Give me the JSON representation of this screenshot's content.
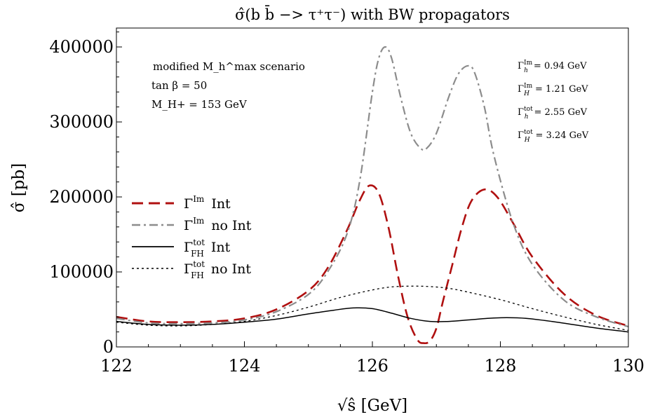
{
  "chart_data": {
    "type": "line",
    "title": "σ̂(b b̄ −> τ⁺τ⁻) with BW propagators",
    "xlabel": "√ŝ  [GeV]",
    "ylabel": "σ̂  [pb]",
    "xlim": [
      122,
      130
    ],
    "ylim": [
      0,
      420000
    ],
    "xticks": [
      122,
      124,
      126,
      128,
      130
    ],
    "yticks": [
      0,
      100000,
      200000,
      300000,
      400000
    ],
    "grid": false,
    "legend_position": "left",
    "annotations": {
      "scenario": "modified M_h^max scenario",
      "tanbeta": "tan β = 50",
      "mass": "M_H+ = 153 GeV"
    },
    "widths": [
      {
        "sym": "Γ",
        "sup": "Im",
        "sub": "h",
        "value": "= 0.94 GeV"
      },
      {
        "sym": "Γ",
        "sup": "Im",
        "sub": "H",
        "value": "= 1.21 GeV"
      },
      {
        "sym": "Γ",
        "sup": "tot",
        "sub": "h",
        "value": "= 2.55 GeV"
      },
      {
        "sym": "Γ",
        "sup": "tot",
        "sub": "H",
        "value": "= 3.24 GeV"
      }
    ],
    "series": [
      {
        "name": "Γ^Im Int",
        "legend": {
          "sym": "Γ",
          "sup": "Im",
          "sub": "",
          "text": "Int"
        },
        "color": "#b01010",
        "style": "dashed",
        "x": [
          122,
          122.5,
          123,
          123.5,
          124,
          124.5,
          125,
          125.3,
          125.6,
          125.8,
          125.95,
          126.1,
          126.25,
          126.4,
          126.55,
          126.7,
          126.8,
          126.9,
          127,
          127.1,
          127.25,
          127.4,
          127.55,
          127.75,
          127.95,
          128.2,
          128.5,
          129,
          129.5,
          130
        ],
        "y": [
          40000,
          34000,
          33000,
          34000,
          38000,
          50000,
          75000,
          105000,
          155000,
          195000,
          215000,
          205000,
          160000,
          95000,
          40000,
          10000,
          5000,
          8000,
          25000,
          60000,
          110000,
          160000,
          195000,
          210000,
          200000,
          165000,
          120000,
          70000,
          42000,
          28000
        ]
      },
      {
        "name": "Γ^Im no Int",
        "legend": {
          "sym": "Γ",
          "sup": "Im",
          "sub": "",
          "text": "no Int"
        },
        "color": "#8c8c8c",
        "style": "dashdot",
        "x": [
          122,
          122.5,
          123,
          123.5,
          124,
          124.5,
          125,
          125.3,
          125.6,
          125.8,
          126,
          126.1,
          126.2,
          126.3,
          126.45,
          126.6,
          126.75,
          126.85,
          127,
          127.2,
          127.35,
          127.5,
          127.6,
          127.75,
          127.9,
          128.2,
          128.5,
          129,
          129.5,
          130
        ],
        "y": [
          38000,
          32000,
          31000,
          32000,
          36000,
          47000,
          70000,
          100000,
          150000,
          220000,
          340000,
          385000,
          400000,
          385000,
          330000,
          285000,
          265000,
          265000,
          285000,
          335000,
          365000,
          375000,
          365000,
          320000,
          255000,
          165000,
          110000,
          62000,
          40000,
          27000
        ]
      },
      {
        "name": "Γ_FH^tot Int",
        "legend": {
          "sym": "Γ",
          "sup": "tot",
          "sub": "FH",
          "text": "Int"
        },
        "color": "#000000",
        "style": "solid",
        "x": [
          122,
          122.5,
          123,
          123.5,
          124,
          124.5,
          125,
          125.4,
          125.7,
          126,
          126.3,
          126.6,
          126.9,
          127.2,
          127.5,
          127.8,
          128.1,
          128.4,
          128.8,
          129.2,
          129.6,
          130
        ],
        "y": [
          34000,
          30000,
          29000,
          30000,
          33000,
          37000,
          44000,
          49000,
          52000,
          51000,
          45000,
          38000,
          34000,
          34000,
          36000,
          38000,
          39000,
          38000,
          34000,
          29000,
          24000,
          20000
        ]
      },
      {
        "name": "Γ_FH^tot no Int",
        "legend": {
          "sym": "Γ",
          "sup": "tot",
          "sub": "FH",
          "text": "no Int"
        },
        "color": "#000000",
        "style": "dotted",
        "x": [
          122,
          122.5,
          123,
          123.5,
          124,
          124.5,
          125,
          125.5,
          126,
          126.3,
          126.6,
          126.9,
          127.2,
          127.5,
          128,
          128.5,
          129,
          129.5,
          130
        ],
        "y": [
          33000,
          29000,
          28000,
          30000,
          34000,
          42000,
          53000,
          66000,
          76000,
          80000,
          81000,
          80500,
          78000,
          73000,
          63000,
          51000,
          40000,
          30000,
          22000
        ]
      }
    ]
  }
}
